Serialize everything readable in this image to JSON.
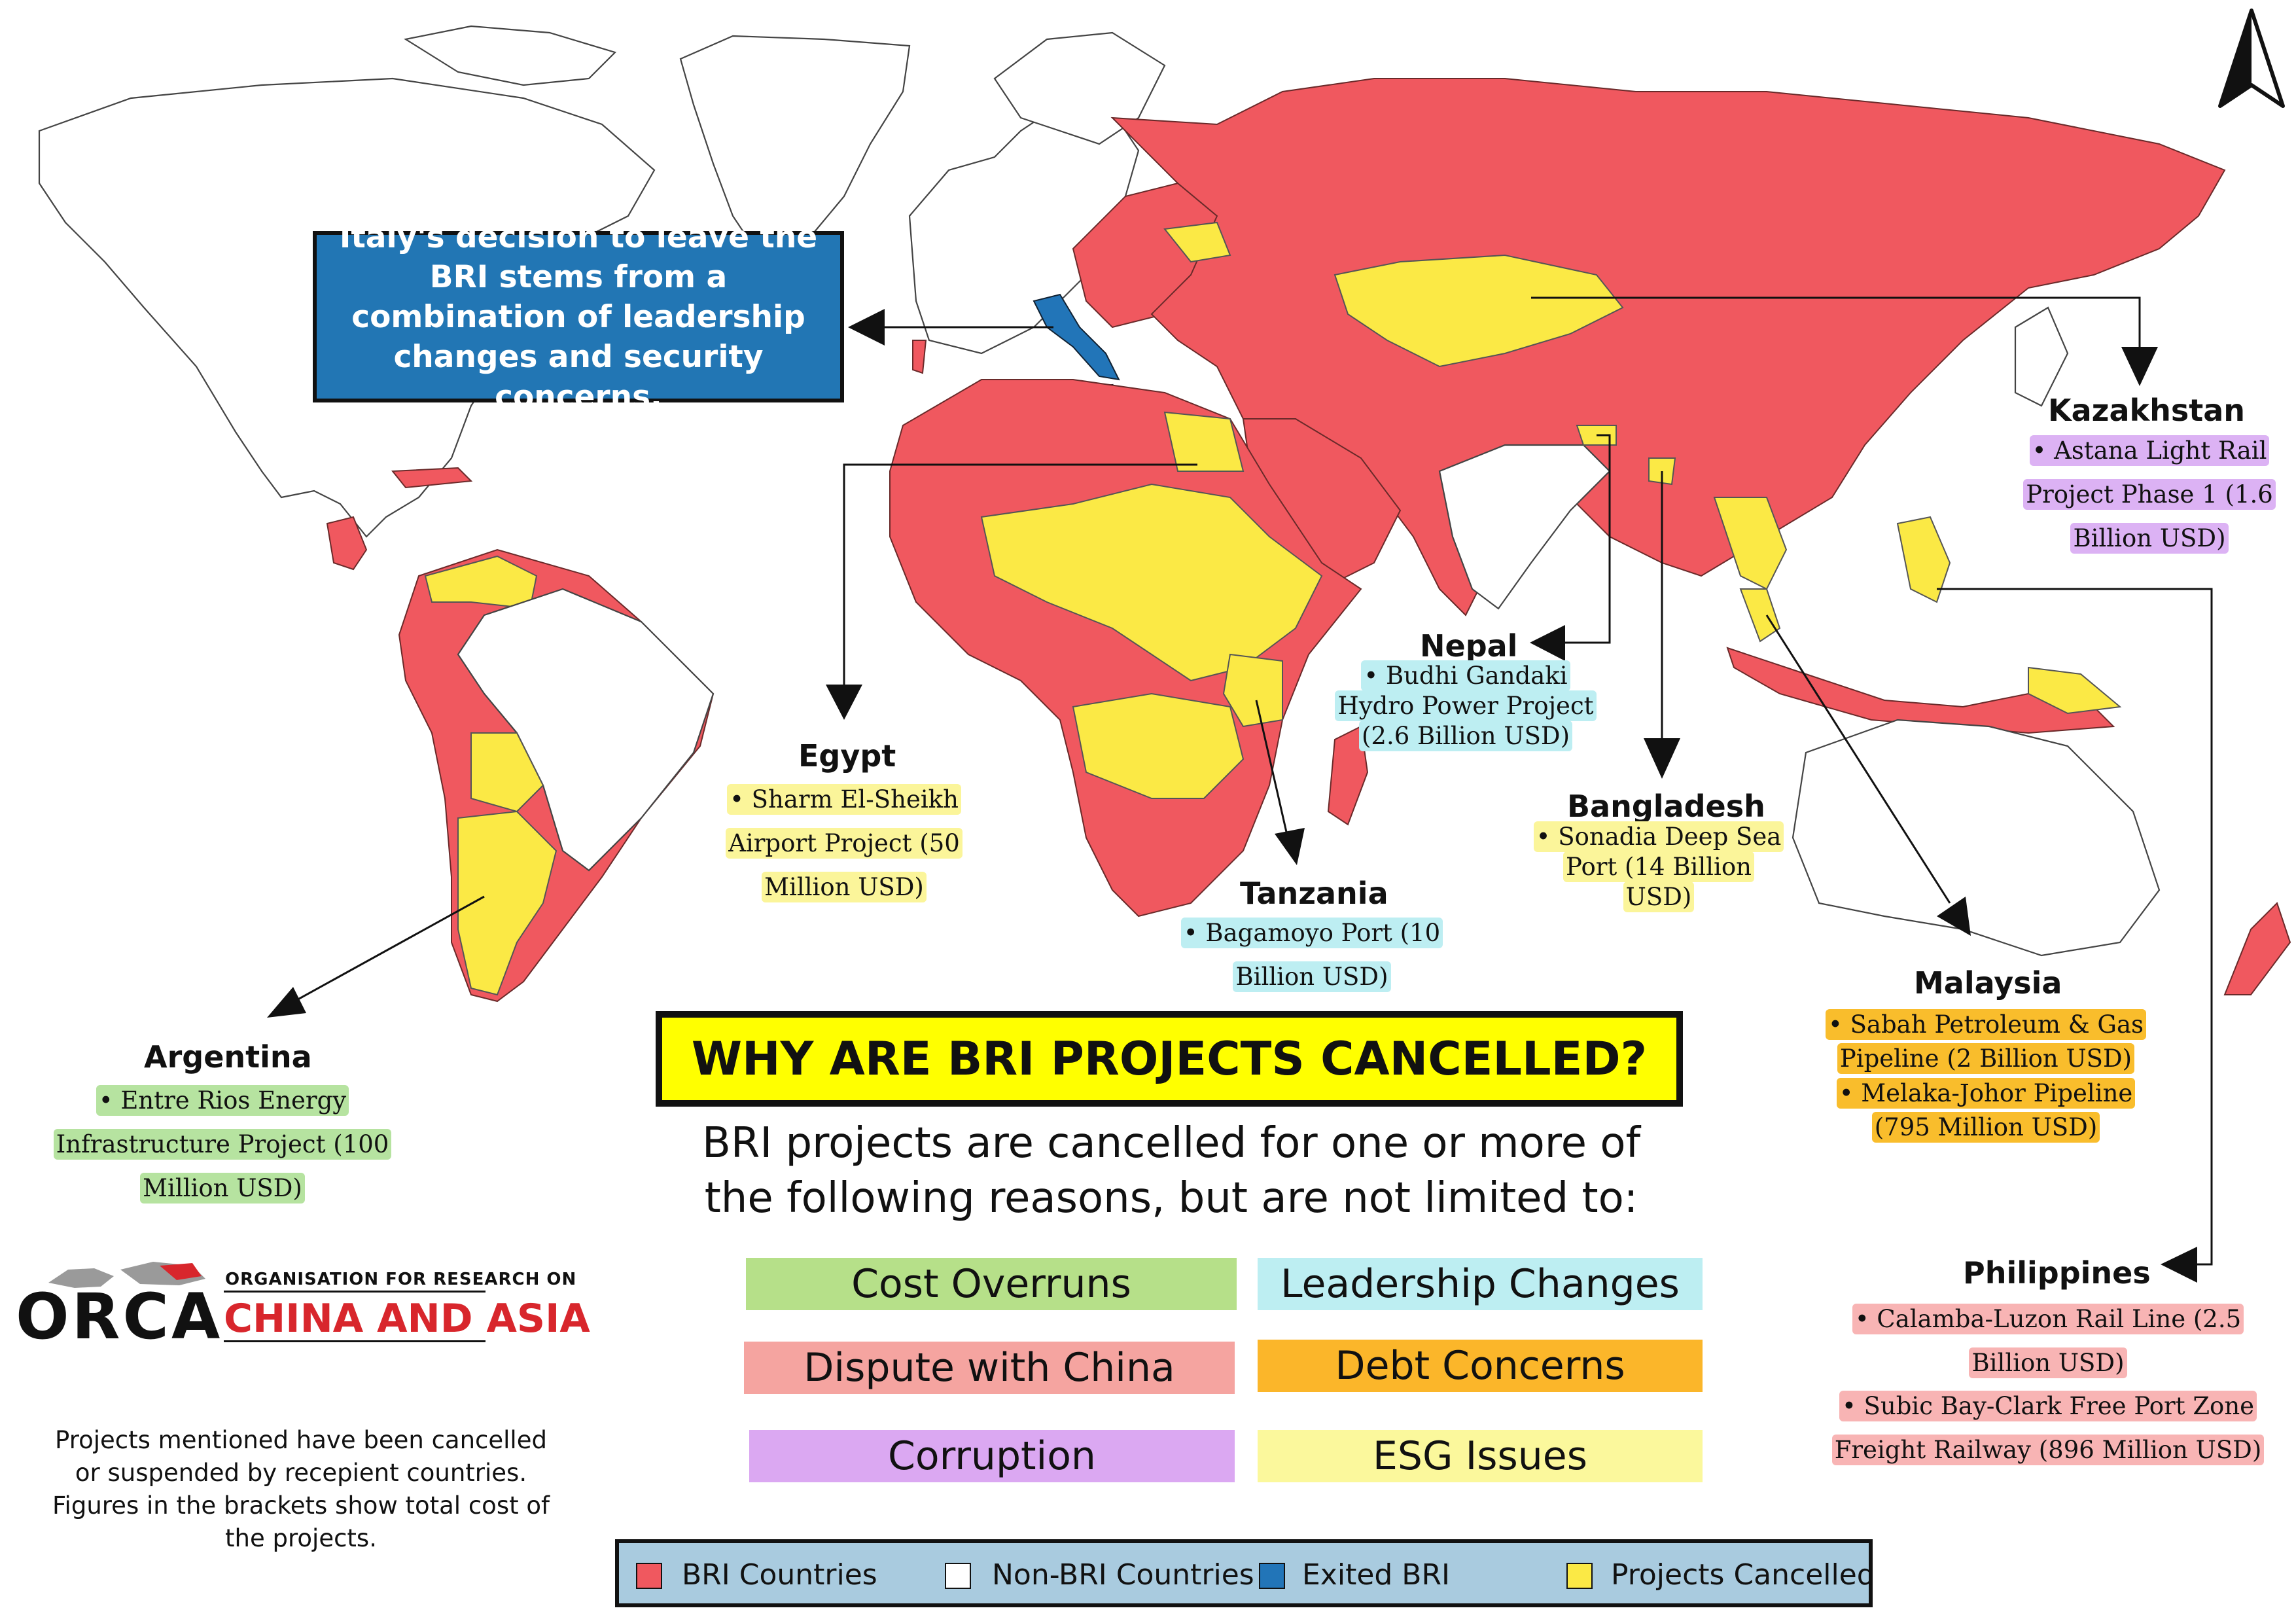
{
  "callout": {
    "italy_text": "Italy's decision to leave the BRI stems from a combination of leadership changes and security concerns."
  },
  "countries": {
    "kazakhstan": {
      "name": "Kazakhstan",
      "projects": [
        "• Astana Light Rail Project Phase 1 (1.6 Billion USD)"
      ]
    },
    "nepal": {
      "name": "Nepal",
      "projects": [
        "• Budhi Gandaki Hydro Power Project (2.6 Billion USD)"
      ]
    },
    "egypt": {
      "name": "Egypt",
      "projects": [
        "• Sharm El-Sheikh Airport  Project (50 Million USD)"
      ]
    },
    "bangladesh": {
      "name": "Bangladesh",
      "projects": [
        "• Sonadia Deep Sea Port (14 Billion USD)"
      ]
    },
    "tanzania": {
      "name": "Tanzania",
      "projects": [
        "• Bagamoyo Port (10 Billion USD)"
      ]
    },
    "malaysia": {
      "name": "Malaysia",
      "projects": [
        "• Sabah Petroleum & Gas Pipeline (2 Billion USD)",
        "• Melaka-Johor Pipeline (795 Million USD)"
      ]
    },
    "argentina": {
      "name": "Argentina",
      "projects": [
        "• Entre Rios Energy Infrastructure Project (100 Million USD)"
      ]
    },
    "philippines": {
      "name": "Philippines",
      "projects": [
        "• Calamba-Luzon Rail Line (2.5 Billion USD)",
        "• Subic Bay-Clark Free Port Zone Freight Railway (896 Million USD)"
      ]
    }
  },
  "headline": "WHY ARE BRI PROJECTS CANCELLED?",
  "subtitle": "BRI projects are cancelled for one or more of the following reasons, but are not limited to:",
  "reasons": [
    {
      "label": "Cost Overruns",
      "color": "#b6e089"
    },
    {
      "label": "Leadership Changes",
      "color": "#bdeef2"
    },
    {
      "label": "Dispute with China",
      "color": "#f5a4a0"
    },
    {
      "label": "Debt Concerns",
      "color": "#fbb62a"
    },
    {
      "label": "Corruption",
      "color": "#dba8f2"
    },
    {
      "label": "ESG Issues",
      "color": "#fbf89c"
    }
  ],
  "legend": [
    {
      "label": "BRI Countries",
      "color": "#f0585f"
    },
    {
      "label": "Non-BRI Countries",
      "color": "#ffffff"
    },
    {
      "label": "Exited BRI",
      "color": "#2275b8"
    },
    {
      "label": "Projects Cancelled",
      "color": "#fbe945"
    }
  ],
  "logo": {
    "wordmark": "ORCA",
    "top_line": "ORGANISATION FOR RESEARCH ON",
    "bottom_line": "CHINA AND ASIA"
  },
  "footnote": "Projects mentioned have been cancelled or suspended by recepient countries. Figures in the brackets show total cost of the projects."
}
